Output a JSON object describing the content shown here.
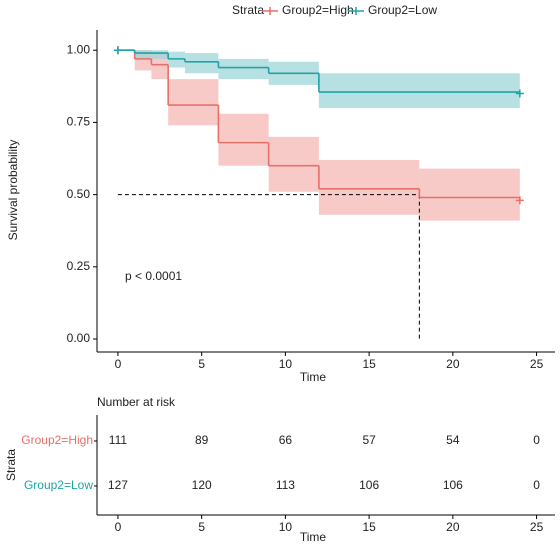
{
  "chart_data": {
    "type": "km",
    "legend_title": "Strata",
    "xlabel": "Time",
    "ylabel": "Survival probability",
    "annotation": "p < 0.0001",
    "xlim": [
      -1.25,
      26.1
    ],
    "ylim": [
      -0.045,
      1.07
    ],
    "xticks": [
      0,
      5,
      10,
      15,
      20,
      25
    ],
    "yticks": [
      {
        "value": 0,
        "label": "0.00"
      },
      {
        "value": 0.25,
        "label": "0.25"
      },
      {
        "value": 0.5,
        "label": "0.50"
      },
      {
        "value": 0.75,
        "label": "0.75"
      },
      {
        "value": 1,
        "label": "1.00"
      }
    ],
    "median_survival": 0.5,
    "median_time": 18,
    "series": [
      {
        "name": "Group2=High",
        "color": "#e8706a",
        "band_color": "#f4b8b4",
        "times": [
          0,
          1,
          2,
          3,
          6,
          9,
          12,
          18,
          24
        ],
        "values": [
          1,
          0.97,
          0.95,
          0.81,
          0.68,
          0.6,
          0.52,
          0.49,
          0.48
        ],
        "upper": [
          1,
          1,
          0.99,
          0.9,
          0.78,
          0.7,
          0.62,
          0.59,
          0.59
        ],
        "lower": [
          1,
          0.93,
          0.9,
          0.74,
          0.6,
          0.51,
          0.43,
          0.41,
          0.41
        ],
        "censor": [
          0,
          24
        ]
      },
      {
        "name": "Group2=Low",
        "color": "#1fa3a8",
        "band_color": "#9fd6d8",
        "times": [
          0,
          1,
          3,
          4,
          6,
          9,
          12,
          24
        ],
        "values": [
          1,
          0.99,
          0.97,
          0.96,
          0.94,
          0.92,
          0.855,
          0.85
        ],
        "upper": [
          1,
          1,
          0.995,
          0.99,
          0.97,
          0.96,
          0.92,
          0.92
        ],
        "lower": [
          1,
          0.97,
          0.94,
          0.92,
          0.9,
          0.88,
          0.8,
          0.8
        ],
        "censor": [
          0,
          24
        ]
      }
    ],
    "risk_table": {
      "title": "Number at risk",
      "ylabel": "Strata",
      "rows": [
        [
          111,
          89,
          66,
          57,
          54,
          0
        ],
        [
          127,
          120,
          113,
          106,
          106,
          0
        ]
      ]
    }
  }
}
